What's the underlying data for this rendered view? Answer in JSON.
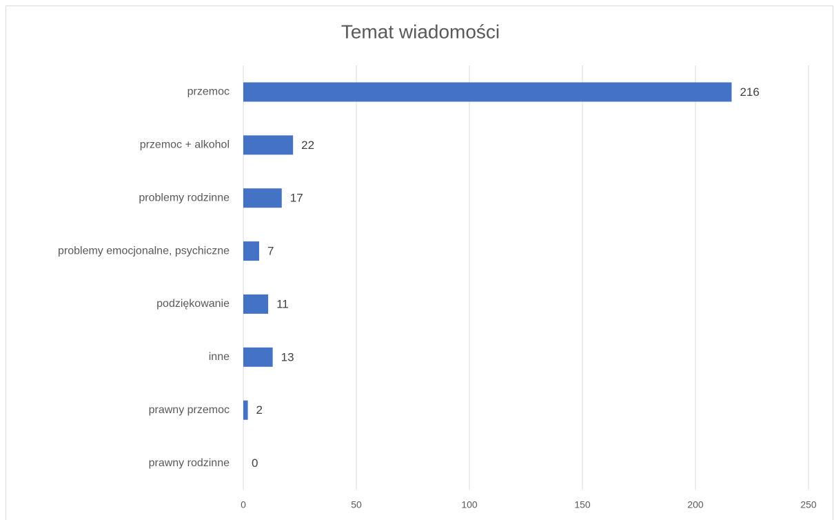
{
  "chart_data": {
    "type": "barh",
    "title": "Temat wiadomości",
    "categories": [
      "przemoc",
      "przemoc + alkohol",
      "problemy rodzinne",
      "problemy emocjonalne, psychiczne",
      "podziękowanie",
      "inne",
      "prawny przemoc",
      "prawny rodzinne"
    ],
    "values": [
      216,
      22,
      17,
      7,
      11,
      13,
      2,
      0
    ],
    "color": "#4472c4",
    "xlim": [
      0,
      250
    ],
    "xticks": [
      0,
      50,
      100,
      150,
      200,
      250
    ],
    "grid": true
  }
}
